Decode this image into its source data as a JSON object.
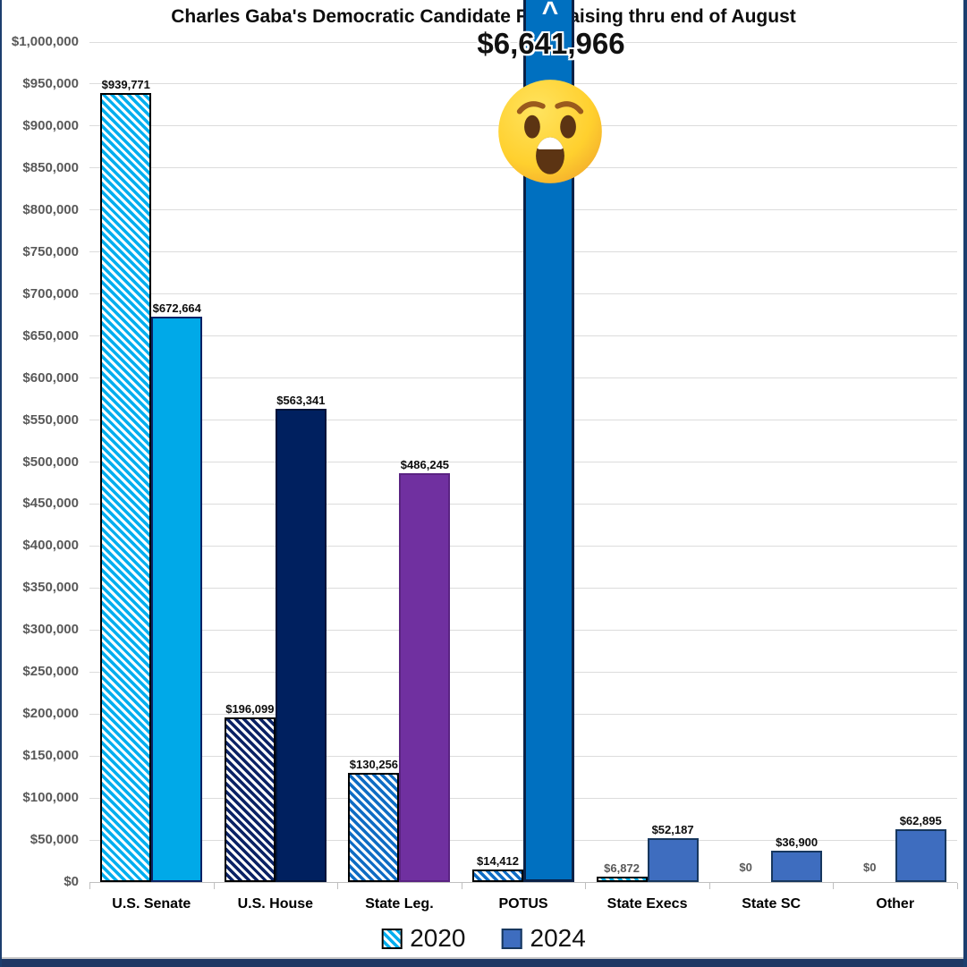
{
  "title": "Charles Gaba's Democratic Candidate Fundraising thru end of August",
  "callout": {
    "value": "$6,641,966",
    "caret": "^",
    "emoji": "astonished-face"
  },
  "legend": {
    "position": "bottom",
    "items": [
      {
        "label": "2020",
        "style": "hatched",
        "color": "#00aeef"
      },
      {
        "label": "2024",
        "style": "solid",
        "color": "#3e6dbf"
      }
    ]
  },
  "colors": {
    "cyan": "#00a9e8",
    "navy": "#00205f",
    "purple": "#7030a0",
    "potus_blue": "#0070c0",
    "royal_blue": "#3e6dbf",
    "grid": "#dcdcdc",
    "axis_text": "#595959",
    "footer": "#1f3864"
  },
  "chart_data": {
    "type": "bar",
    "title": "Charles Gaba's Democratic Candidate Fundraising thru end of August",
    "categories": [
      "U.S. Senate",
      "U.S. House",
      "State Leg.",
      "POTUS",
      "State Execs",
      "State SC",
      "Other"
    ],
    "series": [
      {
        "name": "2020",
        "style": "hatched",
        "values": [
          939771,
          196099,
          130256,
          14412,
          6872,
          0,
          0
        ],
        "labels": [
          "$939,771",
          "$196,099",
          "$130,256",
          "$14,412",
          "$6,872",
          "$0",
          "$0"
        ],
        "colors": [
          "#00aeef",
          "#0b2265",
          "#0f6cc4",
          "#0f6cc4",
          "#00aeef",
          "#00aeef",
          "#00aeef"
        ],
        "muted_label_indices": [
          4,
          5,
          6
        ]
      },
      {
        "name": "2024",
        "style": "solid",
        "values": [
          672664,
          563341,
          486245,
          6641966,
          52187,
          36900,
          62895
        ],
        "labels": [
          "$672,664",
          "$563,341",
          "$486,245",
          "$6,641,966",
          "$52,187",
          "$36,900",
          "$62,895"
        ],
        "colors": [
          "#00a9e8",
          "#00205f",
          "#7030a0",
          "#0070c0",
          "#3e6dbf",
          "#3e6dbf",
          "#3e6dbf"
        ],
        "border_colors": [
          "#0b2265",
          "#001339",
          "#5a2382",
          "#0a2147",
          "#17375e",
          "#17375e",
          "#17375e"
        ],
        "callout_index": 3
      }
    ],
    "xlabel": "",
    "ylabel": "",
    "ylim": [
      0,
      1000000
    ],
    "grid": true,
    "legend_position": "bottom",
    "y_ticks": [
      "$0",
      "$50,000",
      "$100,000",
      "$150,000",
      "$200,000",
      "$250,000",
      "$300,000",
      "$350,000",
      "$400,000",
      "$450,000",
      "$500,000",
      "$550,000",
      "$600,000",
      "$650,000",
      "$700,000",
      "$750,000",
      "$800,000",
      "$850,000",
      "$900,000",
      "$950,000",
      "$1,000,000"
    ]
  }
}
